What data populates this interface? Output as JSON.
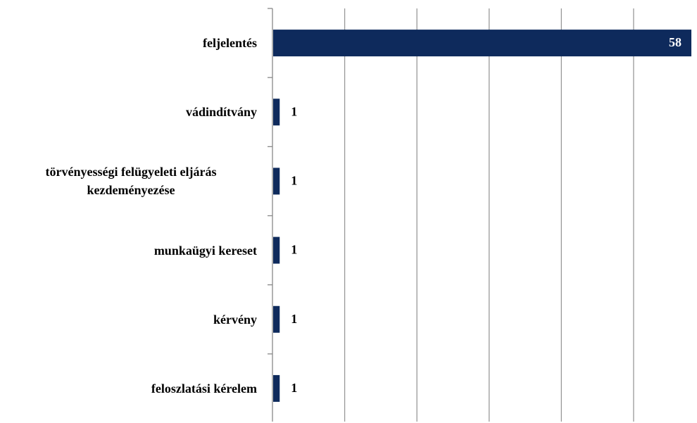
{
  "chart_data": {
    "type": "barh",
    "categories": [
      "feljelentés",
      "vádindítvány",
      "törvényességi felügyeleti eljárás kezdeményezése",
      "munkaügyi kereset",
      "kérvény",
      "feloszlatási kérelem"
    ],
    "values": [
      58,
      1,
      1,
      1,
      1,
      1
    ],
    "color": "#0e2a5c",
    "xlim": [
      0,
      58
    ],
    "xticks": [
      0,
      10,
      20,
      30,
      40,
      50
    ],
    "grid": true
  }
}
